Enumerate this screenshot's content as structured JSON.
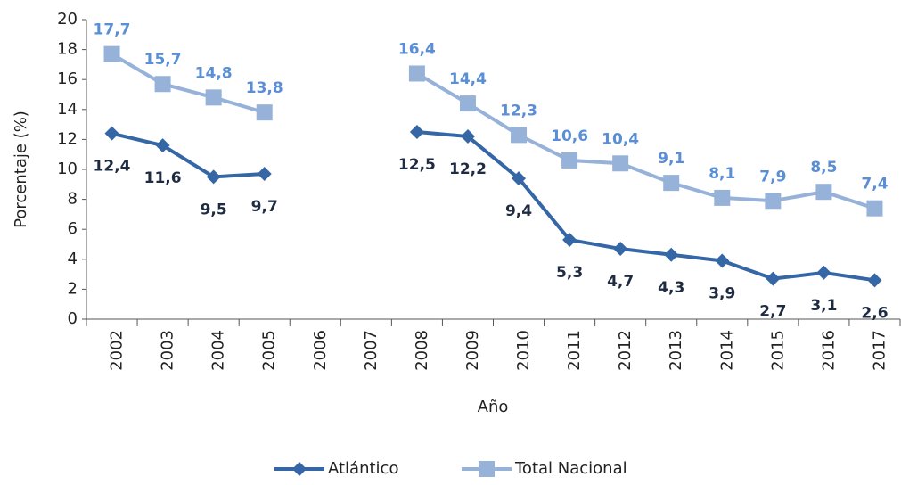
{
  "chart_data": {
    "type": "line",
    "xlabel": "Año",
    "ylabel": "Porcentaje (%)",
    "categories": [
      "2002",
      "2003",
      "2004",
      "2005",
      "2006",
      "2007",
      "2008",
      "2009",
      "2010",
      "2011",
      "2012",
      "2013",
      "2014",
      "2015",
      "2016",
      "2017"
    ],
    "ylim": [
      0,
      20
    ],
    "yticks": [
      0,
      2,
      4,
      6,
      8,
      10,
      12,
      14,
      16,
      18,
      20
    ],
    "grid": false,
    "legend": "bottom",
    "series": [
      {
        "name": "Atlántico",
        "color": "#3566a5",
        "marker": "diamond",
        "label_color": "#1f2b40",
        "values": [
          12.4,
          11.6,
          9.5,
          9.7,
          null,
          null,
          12.5,
          12.2,
          9.4,
          5.3,
          4.7,
          4.3,
          3.9,
          2.7,
          3.1,
          2.6
        ],
        "value_labels": [
          "12,4",
          "11,6",
          "9,5",
          "9,7",
          null,
          null,
          "12,5",
          "12,2",
          "9,4",
          "5,3",
          "4,7",
          "4,3",
          "3,9",
          "2,7",
          "3,1",
          "2,6"
        ]
      },
      {
        "name": "Total Nacional",
        "color": "#97b2d9",
        "marker": "square",
        "label_color": "#5a8fd6",
        "values": [
          17.7,
          15.7,
          14.8,
          13.8,
          null,
          null,
          16.4,
          14.4,
          12.3,
          10.6,
          10.4,
          9.1,
          8.1,
          7.9,
          8.5,
          7.4
        ],
        "value_labels": [
          "17,7",
          "15,7",
          "14,8",
          "13,8",
          null,
          null,
          "16,4",
          "14,4",
          "12,3",
          "10,6",
          "10,4",
          "9,1",
          "8,1",
          "7,9",
          "8,5",
          "7,4"
        ]
      }
    ]
  }
}
